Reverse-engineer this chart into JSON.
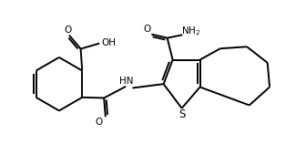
{
  "bg_color": "#ffffff",
  "line_color": "#000000",
  "line_width": 1.4,
  "figsize": [
    3.36,
    1.81
  ],
  "dpi": 100,
  "xlim": [
    0,
    10
  ],
  "ylim": [
    0,
    5.4
  ]
}
